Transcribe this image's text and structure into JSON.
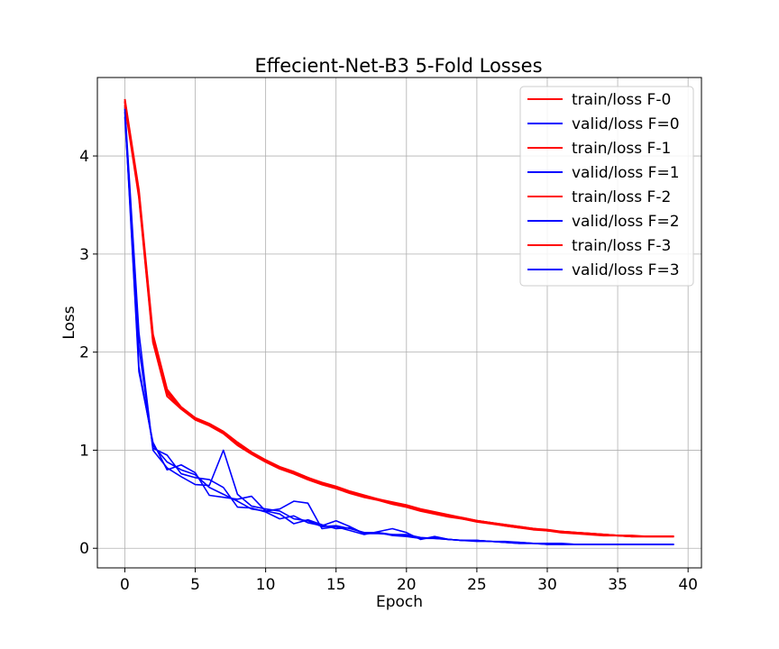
{
  "chart_data": {
    "type": "line",
    "title": "Effecient-Net-B3 5-Fold Losses",
    "xlabel": "Epoch",
    "ylabel": "Loss",
    "xlim": [
      -1.95,
      40.95
    ],
    "ylim": [
      -0.2,
      4.8
    ],
    "xticks": [
      0,
      5,
      10,
      15,
      20,
      25,
      30,
      35,
      40
    ],
    "yticks": [
      0,
      1,
      2,
      3,
      4
    ],
    "grid": true,
    "legend_position": "top-right",
    "colors": {
      "train": "#ff0000",
      "valid": "#0000ff"
    },
    "x": [
      0,
      1,
      2,
      3,
      4,
      5,
      6,
      7,
      8,
      9,
      10,
      11,
      12,
      13,
      14,
      15,
      16,
      17,
      18,
      19,
      20,
      21,
      22,
      23,
      24,
      25,
      26,
      27,
      28,
      29,
      30,
      31,
      32,
      33,
      34,
      35,
      36,
      37,
      38,
      39
    ],
    "series": [
      {
        "name": "train/loss F-0",
        "color": "#ff0000",
        "values": [
          4.58,
          3.65,
          2.18,
          1.62,
          1.44,
          1.33,
          1.27,
          1.19,
          1.08,
          0.98,
          0.9,
          0.83,
          0.78,
          0.72,
          0.67,
          0.63,
          0.58,
          0.54,
          0.5,
          0.47,
          0.44,
          0.4,
          0.37,
          0.34,
          0.31,
          0.28,
          0.26,
          0.24,
          0.22,
          0.2,
          0.19,
          0.17,
          0.16,
          0.15,
          0.14,
          0.13,
          0.13,
          0.12,
          0.12,
          0.12
        ]
      },
      {
        "name": "valid/loss F=0",
        "color": "#0000ff",
        "values": [
          4.5,
          2.2,
          1.0,
          0.82,
          0.73,
          0.65,
          0.64,
          1.0,
          0.55,
          0.43,
          0.4,
          0.38,
          0.3,
          0.28,
          0.22,
          0.23,
          0.2,
          0.16,
          0.16,
          0.14,
          0.13,
          0.1,
          0.11,
          0.09,
          0.08,
          0.08,
          0.07,
          0.07,
          0.06,
          0.05,
          0.05,
          0.05,
          0.04,
          0.04,
          0.04,
          0.04,
          0.04,
          0.04,
          0.04,
          0.04
        ]
      },
      {
        "name": "train/loss F-1",
        "color": "#ff0000",
        "values": [
          4.55,
          3.6,
          2.12,
          1.58,
          1.43,
          1.32,
          1.26,
          1.18,
          1.06,
          0.97,
          0.89,
          0.82,
          0.77,
          0.71,
          0.66,
          0.62,
          0.57,
          0.53,
          0.5,
          0.46,
          0.43,
          0.39,
          0.36,
          0.33,
          0.3,
          0.28,
          0.26,
          0.23,
          0.21,
          0.2,
          0.18,
          0.17,
          0.16,
          0.15,
          0.14,
          0.13,
          0.12,
          0.12,
          0.12,
          0.12
        ]
      },
      {
        "name": "valid/loss F=1",
        "color": "#0000ff",
        "values": [
          4.45,
          1.8,
          1.08,
          0.8,
          0.85,
          0.77,
          0.54,
          0.52,
          0.5,
          0.53,
          0.38,
          0.4,
          0.48,
          0.46,
          0.2,
          0.22,
          0.18,
          0.14,
          0.17,
          0.2,
          0.16,
          0.09,
          0.12,
          0.09,
          0.08,
          0.08,
          0.07,
          0.06,
          0.05,
          0.05,
          0.04,
          0.04,
          0.04,
          0.04,
          0.04,
          0.04,
          0.04,
          0.04,
          0.04,
          0.04
        ]
      },
      {
        "name": "train/loss F-2",
        "color": "#ff0000",
        "values": [
          4.52,
          3.58,
          2.1,
          1.55,
          1.42,
          1.31,
          1.25,
          1.17,
          1.05,
          0.96,
          0.88,
          0.81,
          0.76,
          0.7,
          0.65,
          0.61,
          0.56,
          0.52,
          0.49,
          0.45,
          0.42,
          0.38,
          0.35,
          0.32,
          0.3,
          0.27,
          0.25,
          0.23,
          0.21,
          0.19,
          0.18,
          0.16,
          0.15,
          0.14,
          0.13,
          0.13,
          0.12,
          0.12,
          0.12,
          0.12
        ]
      },
      {
        "name": "valid/loss F=2",
        "color": "#0000ff",
        "values": [
          4.4,
          2.05,
          1.02,
          0.95,
          0.76,
          0.72,
          0.7,
          0.62,
          0.42,
          0.41,
          0.37,
          0.3,
          0.33,
          0.26,
          0.23,
          0.28,
          0.22,
          0.15,
          0.16,
          0.13,
          0.12,
          0.1,
          0.1,
          0.09,
          0.08,
          0.07,
          0.07,
          0.06,
          0.05,
          0.05,
          0.04,
          0.04,
          0.04,
          0.04,
          0.04,
          0.04,
          0.04,
          0.04,
          0.04,
          0.04
        ]
      },
      {
        "name": "train/loss F-3",
        "color": "#ff0000",
        "values": [
          4.56,
          3.62,
          2.15,
          1.6,
          1.43,
          1.32,
          1.26,
          1.18,
          1.07,
          0.97,
          0.89,
          0.82,
          0.78,
          0.72,
          0.66,
          0.62,
          0.57,
          0.53,
          0.5,
          0.46,
          0.43,
          0.39,
          0.36,
          0.33,
          0.31,
          0.28,
          0.26,
          0.24,
          0.22,
          0.2,
          0.18,
          0.17,
          0.16,
          0.15,
          0.14,
          0.13,
          0.12,
          0.12,
          0.12,
          0.12
        ]
      },
      {
        "name": "valid/loss F=3",
        "color": "#0000ff",
        "values": [
          4.48,
          1.85,
          1.05,
          0.88,
          0.8,
          0.75,
          0.62,
          0.55,
          0.48,
          0.4,
          0.38,
          0.35,
          0.25,
          0.29,
          0.24,
          0.2,
          0.21,
          0.15,
          0.15,
          0.14,
          0.14,
          0.11,
          0.1,
          0.09,
          0.08,
          0.08,
          0.07,
          0.06,
          0.06,
          0.05,
          0.05,
          0.04,
          0.04,
          0.04,
          0.04,
          0.04,
          0.04,
          0.04,
          0.04,
          0.04
        ]
      }
    ]
  }
}
